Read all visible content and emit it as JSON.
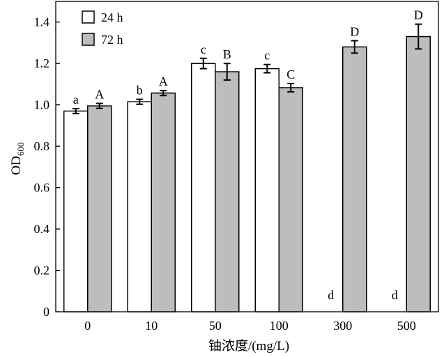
{
  "chart_data": {
    "type": "bar",
    "xlabel": "铀浓度/(mg/L)",
    "ylabel_main": "OD",
    "ylabel_sub": "600",
    "ylim": [
      0,
      1.5
    ],
    "yticks": [
      "0",
      "0.2",
      "0.4",
      "0.6",
      "0.8",
      "1.0",
      "1.2",
      "1.4"
    ],
    "categories": [
      "0",
      "10",
      "50",
      "100",
      "300",
      "500"
    ],
    "legend_position": "top-left",
    "series": [
      {
        "name": "24 h",
        "color": "#ffffff",
        "values": [
          0.97,
          1.015,
          1.2,
          1.175,
          0,
          0
        ],
        "errors": [
          0.012,
          0.012,
          0.025,
          0.02,
          0,
          0
        ],
        "labels": [
          "a",
          "b",
          "c",
          "c",
          "d",
          "d"
        ]
      },
      {
        "name": "72 h",
        "color": "#bdbdbd",
        "values": [
          0.995,
          1.057,
          1.16,
          1.083,
          1.28,
          1.33
        ],
        "errors": [
          0.012,
          0.012,
          0.04,
          0.02,
          0.03,
          0.06
        ],
        "labels": [
          "A",
          "A",
          "B",
          "C",
          "D",
          "D"
        ]
      }
    ]
  }
}
